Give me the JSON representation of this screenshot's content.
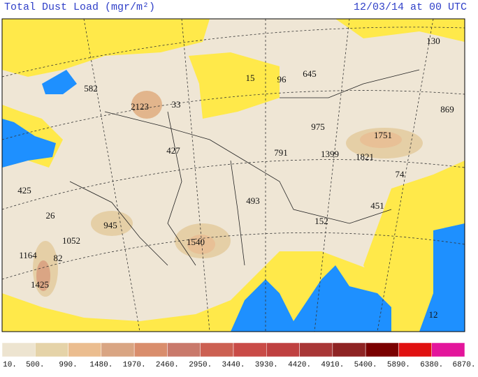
{
  "header": {
    "title": "Total Dust Load (mgr/m²)",
    "date": "12/03/14 at 00 UTC"
  },
  "map_labels": [
    "130",
    "869",
    "1751",
    "1821",
    "74",
    "451",
    "152",
    "1399",
    "975",
    "791",
    "645",
    "96",
    "15",
    "493",
    "1540",
    "945",
    "1052",
    "26",
    "425",
    "1164",
    "82",
    "1425",
    "427",
    "33",
    "2123",
    "582",
    "12"
  ],
  "colorbar": {
    "colors": [
      "#ede4d0",
      "#e5d3a8",
      "#ebbd8f",
      "#d9a583",
      "#d98d6c",
      "#c9796b",
      "#cc6052",
      "#c94b47",
      "#bf4040",
      "#a83636",
      "#8e2323",
      "#7a0000",
      "#e01010",
      "#e3159b"
    ],
    "labels": [
      "10.",
      "500.",
      "990.",
      "1480.",
      "1970.",
      "2460.",
      "2950.",
      "3440.",
      "3930.",
      "4420.",
      "4910.",
      "5400.",
      "5890.",
      "6380.",
      "6870."
    ]
  }
}
